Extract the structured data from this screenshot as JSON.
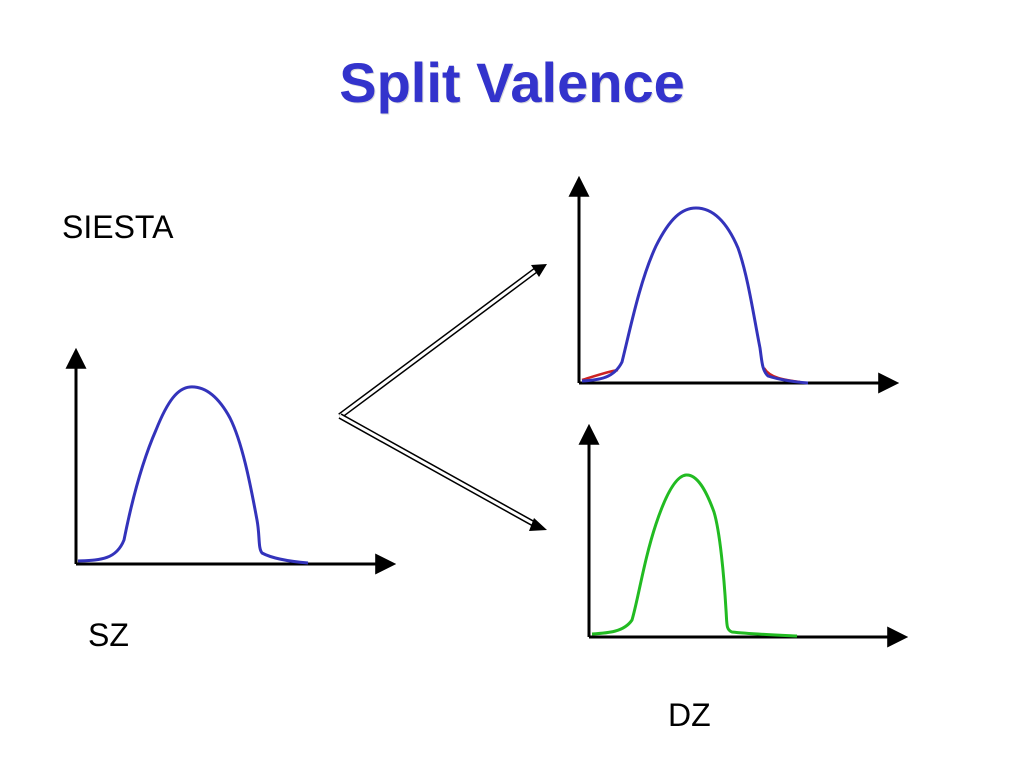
{
  "slide": {
    "title": "Split Valence",
    "labels": {
      "siesta": "SIESTA",
      "sz": "SZ",
      "dz": "DZ"
    }
  },
  "colors": {
    "title": "#3333cc",
    "sz_curve": "#3333bb",
    "dz_top_curve": "#3333bb",
    "dz_top_tail": "#cc2222",
    "dz_bottom_curve": "#22bb22",
    "axis": "#000000"
  },
  "icons": [
    "split-arrow-icon"
  ]
}
